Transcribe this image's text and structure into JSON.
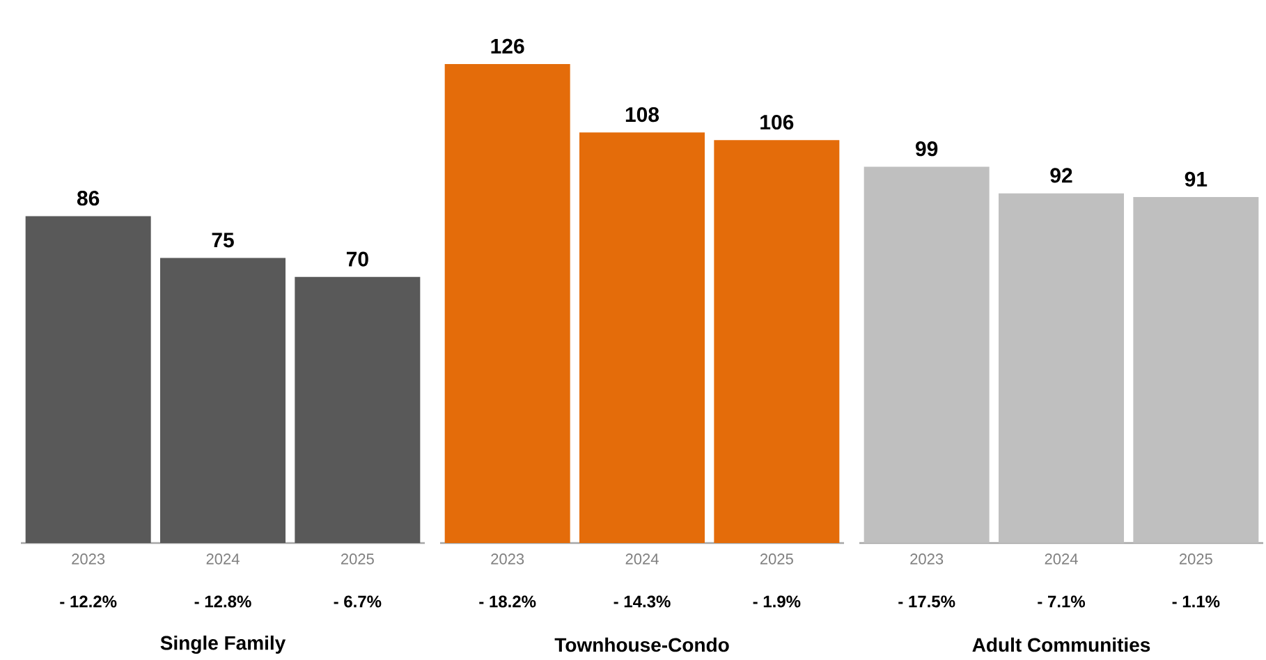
{
  "chart_data": [
    {
      "type": "bar",
      "categories": [
        "2023",
        "2024",
        "2025"
      ],
      "values": [
        86,
        75,
        70
      ],
      "color": "#595959",
      "xlabel": "Single Family",
      "data_labels": true,
      "tick_labels": "x",
      "annotations": [
        "- 12.2%",
        "- 12.8%",
        "- 6.7%"
      ]
    },
    {
      "type": "bar",
      "categories": [
        "2023",
        "2024",
        "2025"
      ],
      "values": [
        126,
        108,
        106
      ],
      "color": "#e46c0a",
      "xlabel": "Townhouse-Condo",
      "data_labels": true,
      "tick_labels": "x",
      "annotations": [
        "- 18.2%",
        "- 14.3%",
        "- 1.9%"
      ]
    },
    {
      "type": "bar",
      "categories": [
        "2023",
        "2024",
        "2025"
      ],
      "values": [
        99,
        92,
        91
      ],
      "color": "#bfbfbf",
      "xlabel": "Adult Communities",
      "data_labels": true,
      "tick_labels": "x",
      "annotations": [
        "- 17.5%",
        "- 7.1%",
        "- 1.1%"
      ]
    }
  ]
}
